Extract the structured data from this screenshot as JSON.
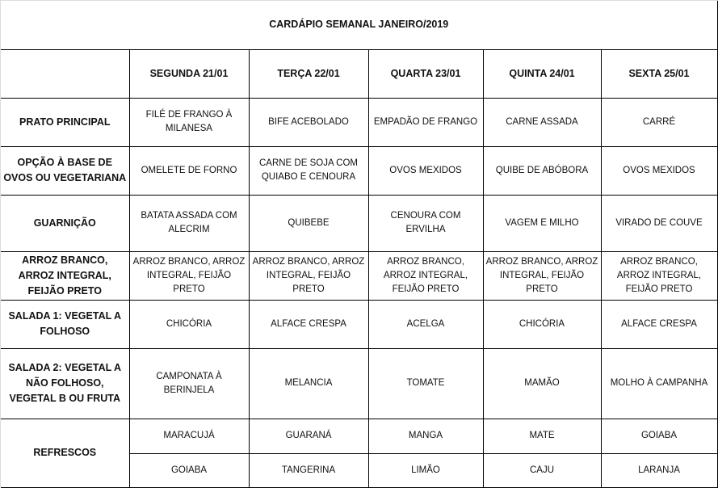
{
  "title": "CARDÁPIO SEMANAL JANEIRO/2019",
  "days": [
    "SEGUNDA   21/01",
    "TERÇA 22/01",
    "QUARTA 23/01",
    "QUINTA 24/01",
    "SEXTA 25/01"
  ],
  "rows": [
    {
      "label": "PRATO PRINCIPAL",
      "cells": [
        "FILÉ DE FRANGO À MILANESA",
        "BIFE ACEBOLADO",
        "EMPADÃO DE FRANGO",
        "CARNE ASSADA",
        "CARRÉ"
      ]
    },
    {
      "label": "OPÇÃO À BASE DE OVOS OU VEGETARIANA",
      "cells": [
        "OMELETE DE FORNO",
        "CARNE DE SOJA COM QUIABO E CENOURA",
        "OVOS MEXIDOS",
        "QUIBE DE ABÓBORA",
        "OVOS MEXIDOS"
      ]
    },
    {
      "label": "GUARNIÇÃO",
      "cells": [
        "BATATA  ASSADA COM ALECRIM",
        "QUIBEBE",
        "CENOURA COM ERVILHA",
        "VAGEM E MILHO",
        "VIRADO DE COUVE"
      ]
    },
    {
      "label": "ARROZ BRANCO, ARROZ INTEGRAL, FEIJÃO PRETO",
      "cells": [
        "ARROZ BRANCO, ARROZ INTEGRAL, FEIJÃO PRETO",
        "ARROZ BRANCO, ARROZ INTEGRAL, FEIJÃO PRETO",
        "ARROZ BRANCO, ARROZ INTEGRAL, FEIJÃO PRETO",
        "ARROZ BRANCO, ARROZ INTEGRAL, FEIJÃO PRETO",
        "ARROZ BRANCO, ARROZ INTEGRAL, FEIJÃO PRETO"
      ]
    },
    {
      "label": "SALADA 1: VEGETAL A FOLHOSO",
      "cells": [
        "CHICÓRIA",
        "ALFACE CRESPA",
        "ACELGA",
        "CHICÓRIA",
        "ALFACE CRESPA"
      ]
    },
    {
      "label": "SALADA 2: VEGETAL A NÃO FOLHOSO, VEGETAL B OU FRUTA",
      "cells": [
        "CAMPONATA À BERINJELA",
        "MELANCIA",
        "TOMATE",
        "MAMÃO",
        "MOLHO À CAMPANHA"
      ]
    }
  ],
  "refrescos": {
    "label": "REFRESCOS",
    "row1": [
      "MARACUJÁ",
      "GUARANÁ",
      "MANGA",
      "MATE",
      "GOIABA"
    ],
    "row2": [
      "GOIABA",
      "TANGERINA",
      "LIMÃO",
      "CAJU",
      "LARANJA"
    ]
  }
}
